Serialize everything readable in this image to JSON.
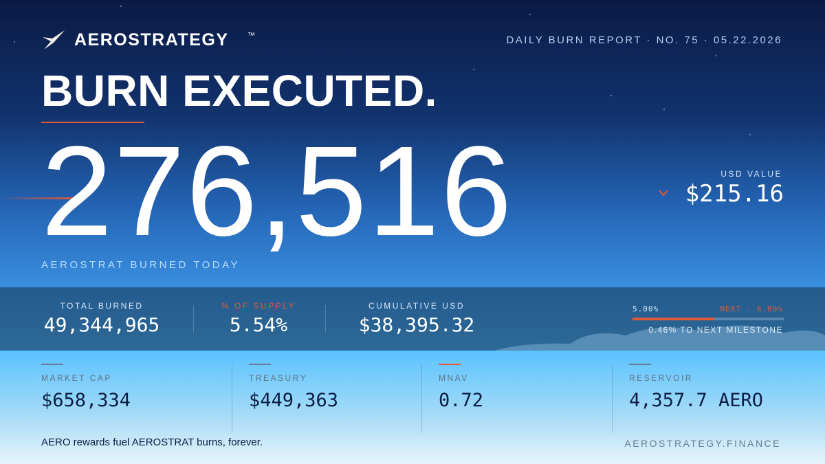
{
  "brand": {
    "name": "AEROSTRATEGY",
    "tm": "™"
  },
  "report": "DAILY BURN REPORT · NO. 75 · 05.22.2026",
  "headline": "BURN EXECUTED.",
  "amount": "276,516",
  "amount_label": "AEROSTRAT BURNED TODAY",
  "usd": {
    "label": "USD VALUE",
    "value": "$215.16"
  },
  "stats": [
    {
      "label": "TOTAL BURNED",
      "value": "49,344,965"
    },
    {
      "label": "% OF SUPPLY",
      "value": "5.54%"
    },
    {
      "label": "CUMULATIVE USD",
      "value": "$38,395.32"
    }
  ],
  "milestone": {
    "start": "5.00%",
    "next": "NEXT · 6.00%",
    "note": "0.46% TO NEXT MILESTONE"
  },
  "metrics": [
    {
      "label": "MARKET CAP",
      "value": "$658,334"
    },
    {
      "label": "TREASURY",
      "value": "$449,363"
    },
    {
      "label": "MNAV",
      "value": "0.72"
    },
    {
      "label": "RESERVOIR",
      "value": "4,357.7 AERO"
    }
  ],
  "footer": {
    "tagline": "AERO rewards fuel AEROSTRAT burns, forever.",
    "site": "AEROSTRATEGY.FINANCE"
  }
}
